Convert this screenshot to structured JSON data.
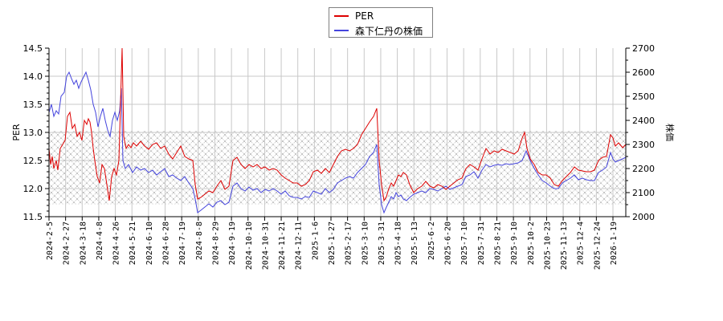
{
  "chart_data": {
    "type": "line",
    "title": "",
    "legend": {
      "position": "top-center",
      "entries": [
        {
          "label": "PER",
          "color": "#dd0000"
        },
        {
          "label": "森下仁丹の株価",
          "color": "#4444dd"
        }
      ]
    },
    "ylabel_left": "PER",
    "ylabel_right": "株価",
    "ylim_left": [
      11.5,
      14.5
    ],
    "ylim_right": [
      2000,
      2700
    ],
    "yticks_left": [
      "14.5",
      "14.0",
      "13.5",
      "13.0",
      "12.5",
      "12.0",
      "11.5"
    ],
    "yticks_right": [
      "2700",
      "2600",
      "2500",
      "2400",
      "2300",
      "2200",
      "2100",
      "2000"
    ],
    "grid": true,
    "shaded_band": {
      "ymin_per": 11.7,
      "ymax_per": 13.03,
      "pattern": "crosshatch"
    },
    "x": [
      "2024-2-5",
      "2024-2-27",
      "2024-3-18",
      "2024-4-8",
      "2024-4-26",
      "2024-5-21",
      "2024-6-10",
      "2024-6-28",
      "2024-7-19",
      "2024-8-8",
      "2024-8-29",
      "2024-9-19",
      "2024-10-10",
      "2024-10-31",
      "2024-11-21",
      "2024-12-11",
      "2025-1-6",
      "2025-1-27",
      "2025-2-17",
      "2025-3-10",
      "2025-3-31",
      "2025-4-18",
      "2025-5-13",
      "2025-6-2",
      "2025-6-20",
      "2025-7-10",
      "2025-7-31",
      "2025-8-21",
      "2025-9-10",
      "2025-10-2",
      "2025-10-23",
      "2025-11-13",
      "2025-12-4",
      "2025-12-24",
      "2026-1-19"
    ],
    "series": [
      {
        "name": "PER",
        "axis": "left",
        "values": [
          12.5,
          12.85,
          13.0,
          12.2,
          12.3,
          12.8,
          12.75,
          12.75,
          12.55,
          11.85,
          12.05,
          12.3,
          12.35,
          12.3,
          12.25,
          12.1,
          12.25,
          12.4,
          12.65,
          12.8,
          12.3,
          11.95,
          12.05,
          11.95,
          12.05,
          12.15,
          12.4,
          12.6,
          12.65,
          12.7,
          12.2,
          12.05,
          12.3,
          12.3,
          12.8
        ]
      },
      {
        "name": "森下仁丹の株価",
        "axis": "right",
        "values": [
          2430,
          2530,
          2580,
          2400,
          2400,
          2210,
          2200,
          2200,
          2140,
          2040,
          2080,
          2130,
          2110,
          2110,
          2100,
          2080,
          2090,
          2110,
          2160,
          2200,
          2140,
          2060,
          2080,
          2080,
          2100,
          2110,
          2170,
          2200,
          2230,
          2260,
          2140,
          2110,
          2150,
          2150,
          2230
        ]
      }
    ]
  }
}
